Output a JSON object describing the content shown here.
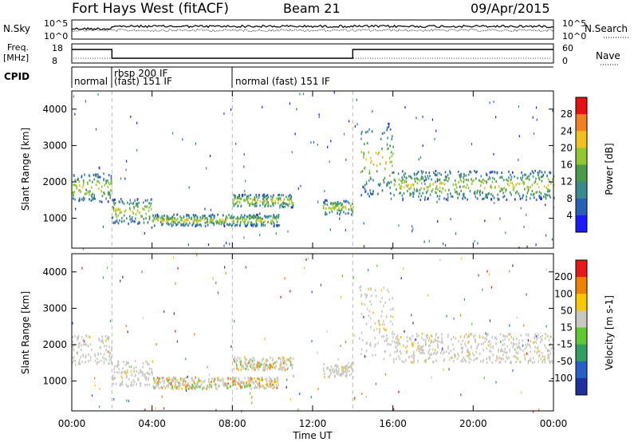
{
  "header": {
    "station": "Fort Hays West (fitACF)",
    "beam": "Beam 21",
    "date": "09/Apr/2015"
  },
  "noise_panel": {
    "left_label": "N.Sky",
    "right_label": "N.Search",
    "left_ticks": [
      "10^5",
      "10^0"
    ],
    "right_ticks": [
      "10^5",
      "10^0"
    ]
  },
  "freq_panel": {
    "left_label": "Freq.",
    "left_unit": "[MHz]",
    "right_label": "Nave",
    "left_ticks": [
      "18",
      "8"
    ],
    "right_ticks": [
      "60",
      "0"
    ]
  },
  "cpid_panel": {
    "label": "CPID",
    "segments": [
      {
        "text": "normal",
        "x_start": 0.0
      },
      {
        "text": "rbsp 200 IF",
        "x_start": 2.0
      },
      {
        "text": "(fast) 151 IF",
        "x_start": 2.0
      },
      {
        "text": "normal (fast) 151 IF",
        "x_start": 8.0
      }
    ]
  },
  "chart_data": [
    {
      "type": "heatmap",
      "name": "power",
      "ylabel": "Slant Range [km]",
      "yticks": [
        1000,
        2000,
        3000,
        4000
      ],
      "ylim": [
        180,
        4500
      ],
      "colorbar": {
        "label": "Power [dB]",
        "ticks": [
          "4",
          "8",
          "12",
          "16",
          "20",
          "24",
          "28"
        ],
        "colors": [
          "#1a1aff",
          "#2860b8",
          "#3a8c8c",
          "#4a9a4a",
          "#90c830",
          "#f0c020",
          "#f08020",
          "#e81010"
        ],
        "range": [
          0,
          30
        ]
      },
      "regions": [
        {
          "t0": 0.0,
          "t1": 2.0,
          "r0": 1450,
          "r1": 2250,
          "note": "band"
        },
        {
          "t0": 2.0,
          "t1": 4.0,
          "r0": 850,
          "r1": 1550
        },
        {
          "t0": 4.0,
          "t1": 10.3,
          "r0": 780,
          "r1": 1100
        },
        {
          "t0": 8.0,
          "t1": 11.0,
          "r0": 1300,
          "r1": 1650
        },
        {
          "t0": 12.5,
          "t1": 14.0,
          "r0": 1100,
          "r1": 1500
        },
        {
          "t0": 14.3,
          "t1": 16.0,
          "r0": 1600,
          "r1": 3600
        },
        {
          "t0": 16.0,
          "t1": 24.0,
          "r0": 1500,
          "r1": 2300
        }
      ]
    },
    {
      "type": "heatmap",
      "name": "velocity",
      "ylabel": "Slant Range [km]",
      "yticks": [
        1000,
        2000,
        3000,
        4000
      ],
      "ylim": [
        180,
        4500
      ],
      "colorbar": {
        "label": "Velocity [m s-1]",
        "ticks": [
          "200",
          "100",
          "50",
          "15",
          "-15",
          "-50",
          "-100",
          "-200"
        ],
        "colors": [
          "#2030a0",
          "#2860c8",
          "#30a060",
          "#60c830",
          "#c8c8c0",
          "#f8c800",
          "#f08000",
          "#e81818"
        ],
        "range": [
          -250,
          250
        ]
      },
      "regions": [
        {
          "t0": 0.0,
          "t1": 2.0,
          "r0": 1450,
          "r1": 2250
        },
        {
          "t0": 2.0,
          "t1": 4.0,
          "r0": 850,
          "r1": 1550
        },
        {
          "t0": 4.0,
          "t1": 10.3,
          "r0": 780,
          "r1": 1100
        },
        {
          "t0": 8.0,
          "t1": 11.0,
          "r0": 1300,
          "r1": 1650
        },
        {
          "t0": 12.5,
          "t1": 14.0,
          "r0": 1100,
          "r1": 1500
        },
        {
          "t0": 14.3,
          "t1": 16.0,
          "r0": 1600,
          "r1": 3600
        },
        {
          "t0": 16.0,
          "t1": 24.0,
          "r0": 1500,
          "r1": 2300
        }
      ]
    }
  ],
  "x_axis": {
    "label": "Time UT",
    "ticks": [
      "00:00",
      "04:00",
      "08:00",
      "12:00",
      "16:00",
      "20:00",
      "00:00"
    ],
    "tick_hours": [
      0,
      4,
      8,
      12,
      16,
      20,
      24
    ]
  },
  "freq_series": [
    {
      "t0": 0.0,
      "t1": 2.0,
      "value": 16.5
    },
    {
      "t0": 2.0,
      "t1": 14.0,
      "value": 11.0
    },
    {
      "t0": 14.0,
      "t1": 24.0,
      "value": 16.5
    }
  ],
  "mode_boundaries_hours": [
    2.0,
    8.0,
    14.0
  ]
}
